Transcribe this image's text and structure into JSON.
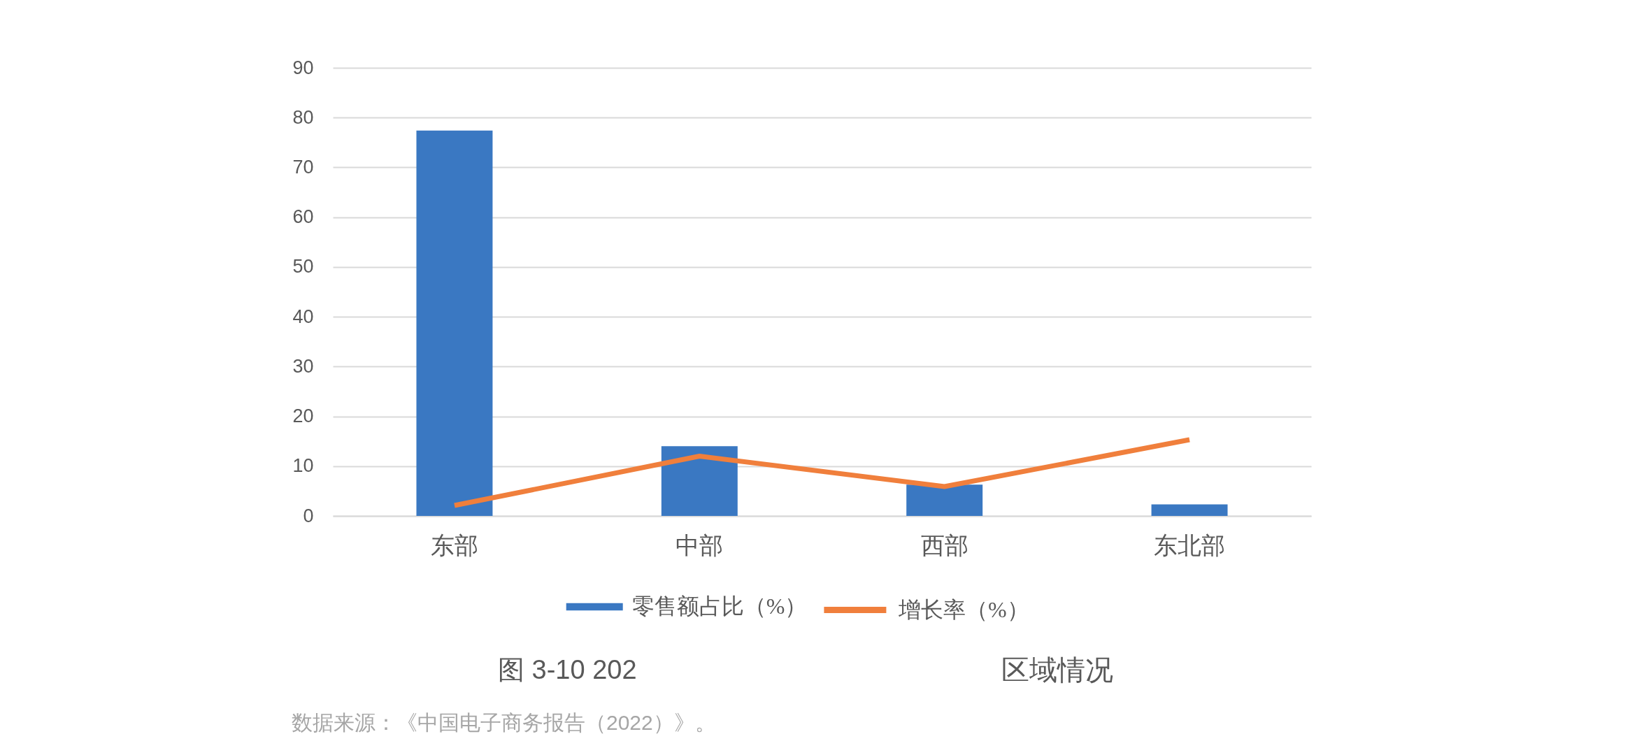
{
  "chart_data": {
    "type": "bar",
    "categories": [
      "东部",
      "中部",
      "西部",
      "东北部"
    ],
    "series": [
      {
        "name": "零售额占比（%）",
        "color": "#3a78c2",
        "values": [
          77.4,
          14.0,
          6.3,
          2.3
        ]
      },
      {
        "name": "增长率（%）",
        "type": "line",
        "color": "#f07f3c",
        "values": [
          2.1,
          12.0,
          5.9,
          15.3
        ]
      }
    ],
    "ylim": [
      0,
      90
    ],
    "yticks": [
      0,
      10,
      20,
      30,
      40,
      50,
      60,
      70,
      80,
      90
    ],
    "grid": "y",
    "legend": "bottom",
    "annotations": [
      "图 3-10 202",
      "区域情况",
      "数据来源：《中国电子商务报告（2022）》。"
    ]
  }
}
